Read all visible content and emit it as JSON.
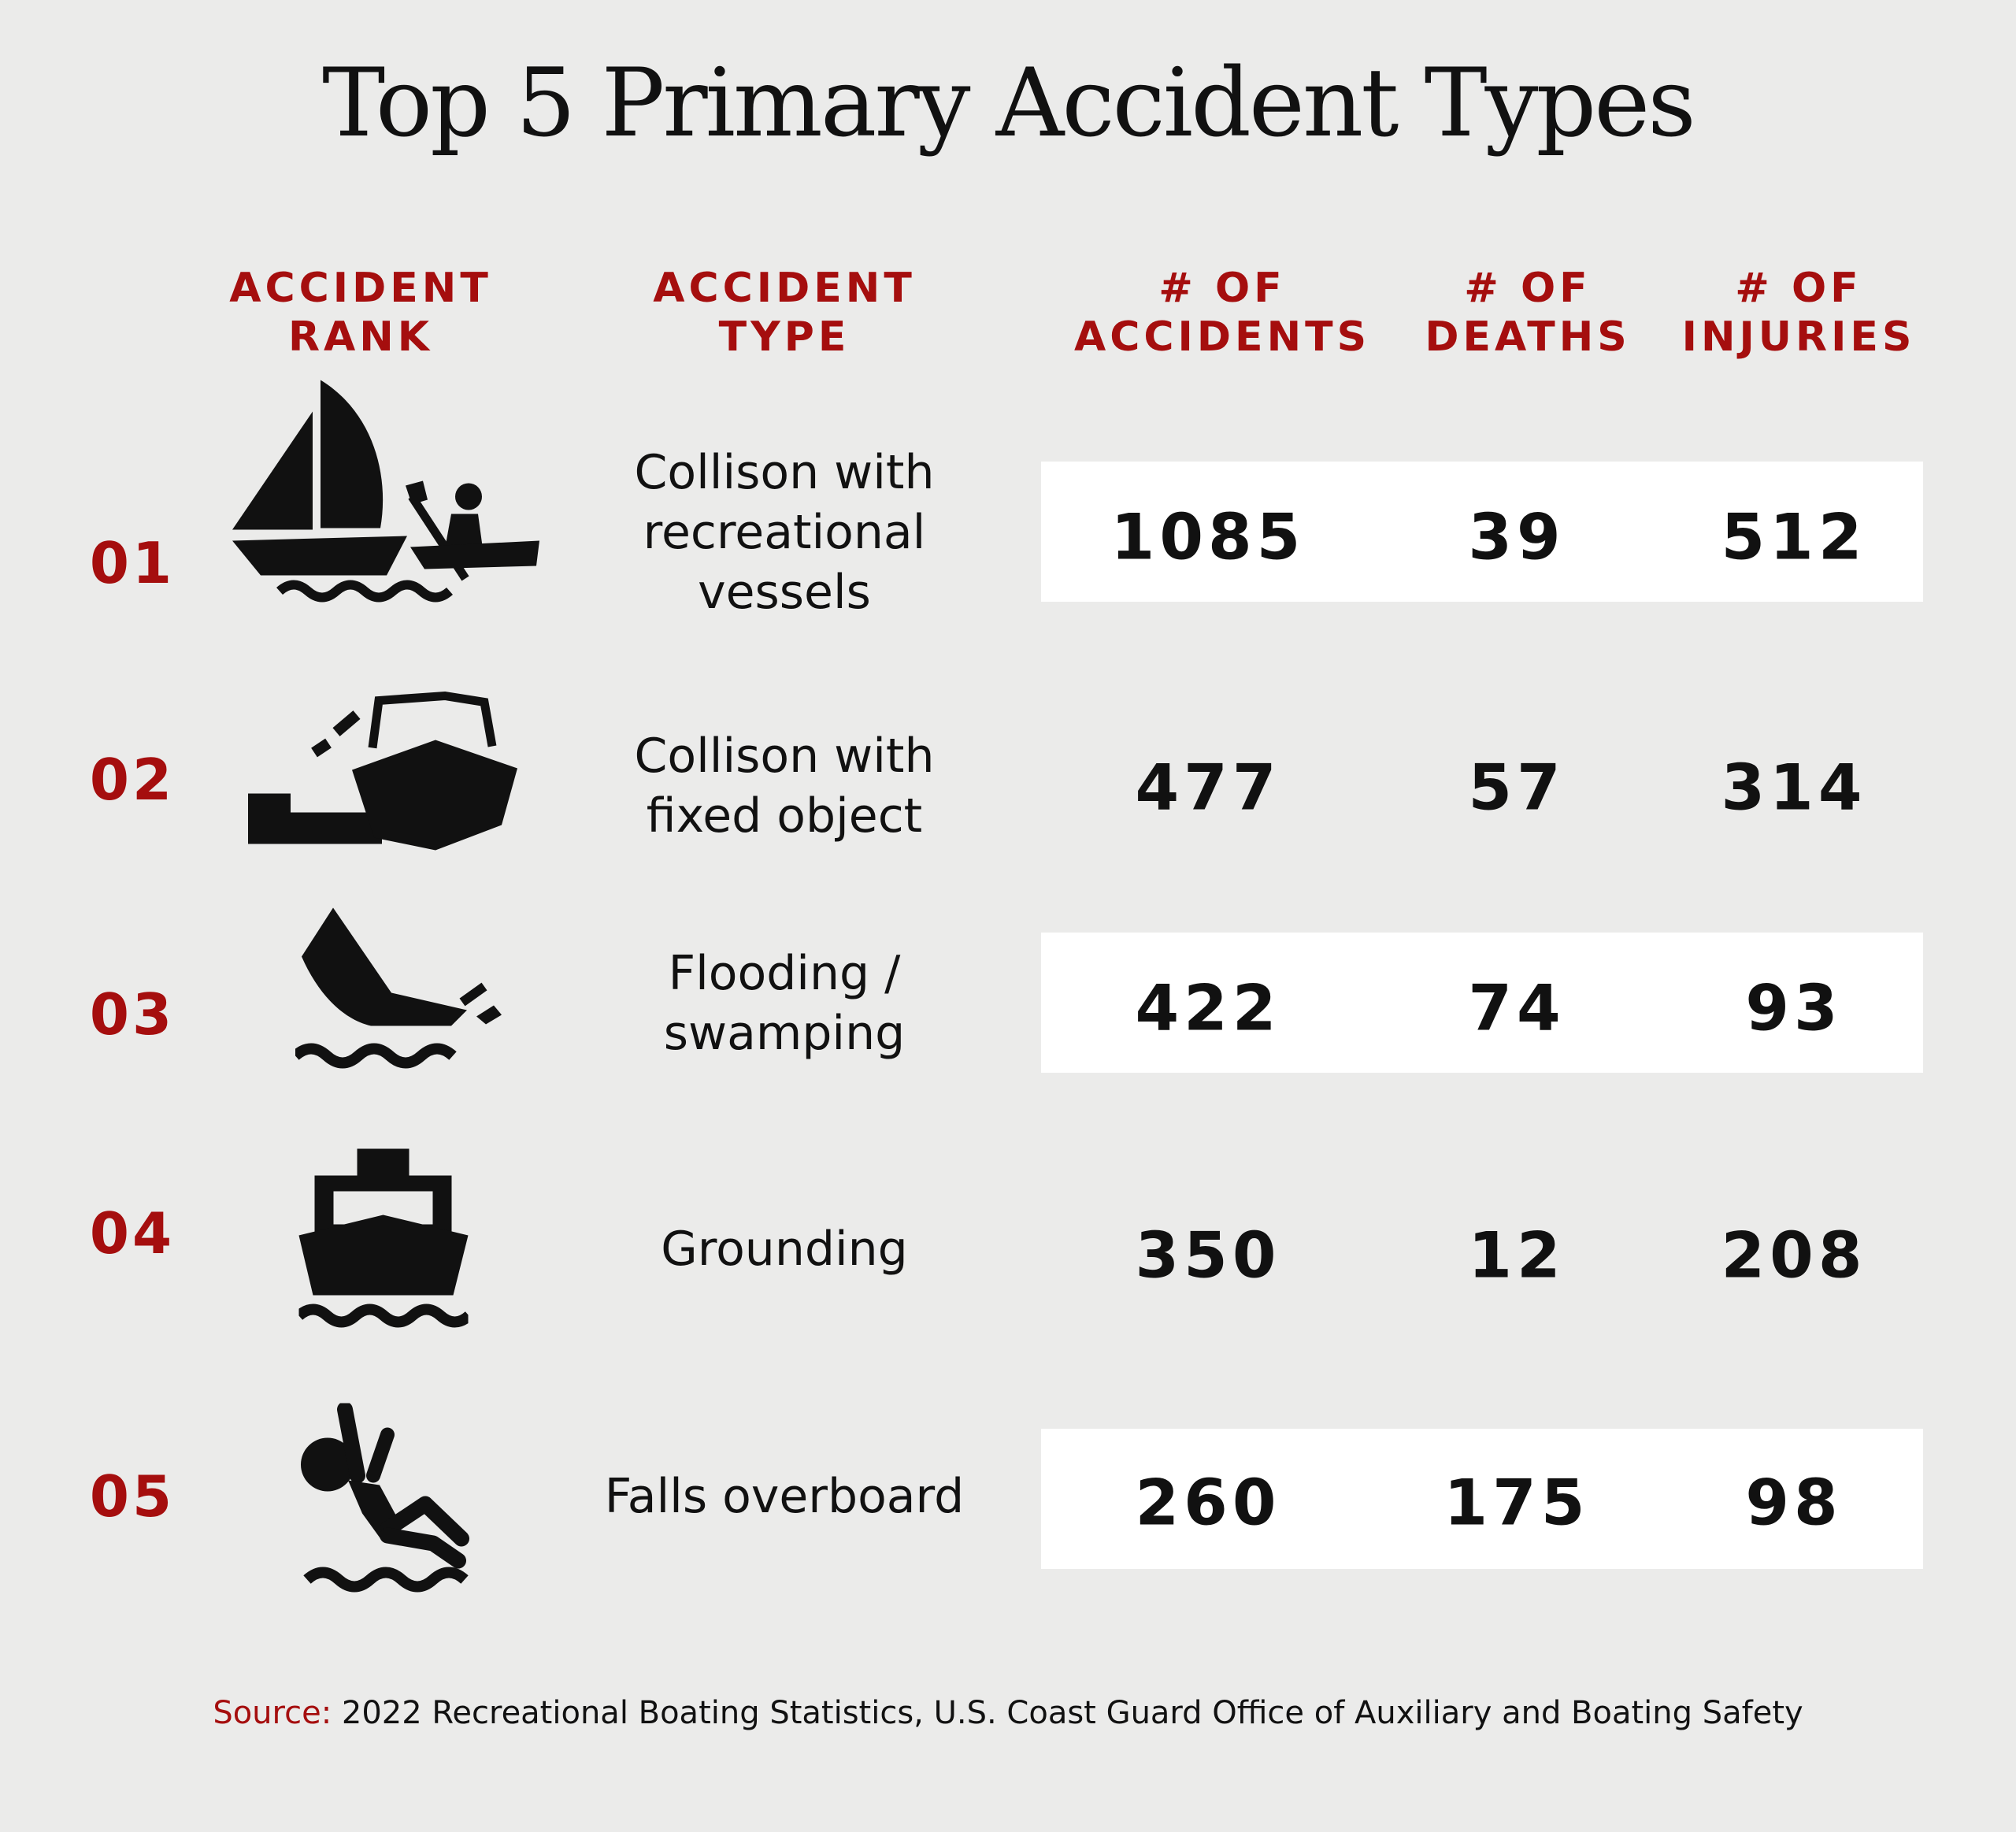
{
  "title": "Top 5 Primary Accident Types",
  "headers": {
    "rank": [
      "ACCIDENT",
      "RANK"
    ],
    "type": [
      "ACCIDENT",
      "TYPE"
    ],
    "accidents": [
      "# OF",
      "ACCIDENTS"
    ],
    "deaths": [
      "# OF",
      "DEATHS"
    ],
    "injuries": [
      "# OF",
      "INJURIES"
    ]
  },
  "rows": [
    {
      "rank": "01",
      "type": "Collison with recreational vessels",
      "type_lines": [
        "Collison with",
        "recreational",
        "vessels"
      ],
      "icon": "sailboat-kayak-icon",
      "accidents": "1085",
      "deaths": "39",
      "injuries": "512"
    },
    {
      "rank": "02",
      "type": "Collison with fixed object",
      "type_lines": [
        "Collison with",
        "fixed object"
      ],
      "icon": "boat-hitting-dock-icon",
      "accidents": "477",
      "deaths": "57",
      "injuries": "314"
    },
    {
      "rank": "03",
      "type": "Flooding / swamping",
      "type_lines": [
        "Flooding /",
        "swamping"
      ],
      "icon": "sinking-boat-icon",
      "accidents": "422",
      "deaths": "74",
      "injuries": "93"
    },
    {
      "rank": "04",
      "type": "Grounding",
      "type_lines": [
        "Grounding"
      ],
      "icon": "ship-icon",
      "accidents": "350",
      "deaths": "12",
      "injuries": "208"
    },
    {
      "rank": "05",
      "type": "Falls overboard",
      "type_lines": [
        "Falls overboard"
      ],
      "icon": "person-falling-overboard-icon",
      "accidents": "260",
      "deaths": "175",
      "injuries": "98"
    }
  ],
  "source": {
    "label": "Source:",
    "text": " 2022 Recreational Boating Statistics, U.S. Coast Guard Office of Auxiliary and Boating Safety"
  },
  "colors": {
    "accent": "#a50e0e",
    "background": "#ebebea",
    "band": "#ffffff",
    "text": "#111111"
  },
  "chart_data": {
    "type": "table",
    "title": "Top 5 Primary Accident Types",
    "columns": [
      "ACCIDENT RANK",
      "ACCIDENT TYPE",
      "# OF ACCIDENTS",
      "# OF DEATHS",
      "# OF INJURIES"
    ],
    "rows": [
      [
        "01",
        "Collison with recreational vessels",
        1085,
        39,
        512
      ],
      [
        "02",
        "Collison with fixed object",
        477,
        57,
        314
      ],
      [
        "03",
        "Flooding / swamping",
        422,
        74,
        93
      ],
      [
        "04",
        "Grounding",
        350,
        12,
        208
      ],
      [
        "05",
        "Falls overboard",
        260,
        175,
        98
      ]
    ]
  }
}
